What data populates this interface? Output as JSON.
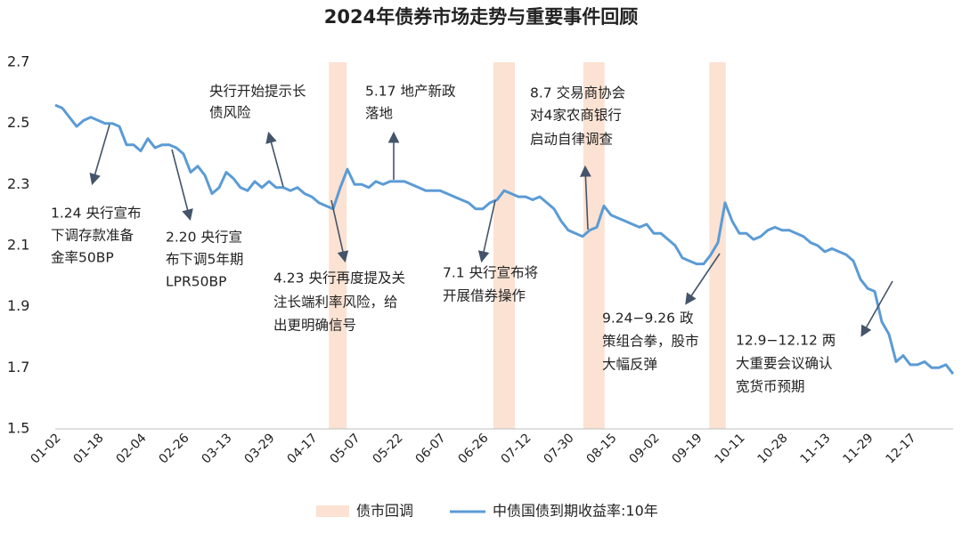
{
  "chart_data": {
    "type": "line",
    "title": "2024年债券市场走势与重要事件回顾",
    "categories": [
      "01-02",
      null,
      null,
      null,
      null,
      null,
      "01-18",
      null,
      null,
      null,
      null,
      null,
      "02-04",
      null,
      null,
      null,
      null,
      null,
      "02-26",
      null,
      null,
      null,
      null,
      null,
      "03-13",
      null,
      null,
      null,
      null,
      null,
      "03-29",
      null,
      null,
      null,
      null,
      null,
      "04-17",
      null,
      null,
      null,
      null,
      null,
      "05-07",
      null,
      null,
      null,
      null,
      null,
      "05-22",
      null,
      null,
      null,
      null,
      null,
      "06-07",
      null,
      null,
      null,
      null,
      null,
      "06-26",
      null,
      null,
      null,
      null,
      null,
      "07-12",
      null,
      null,
      null,
      null,
      null,
      "07-30",
      null,
      null,
      null,
      null,
      null,
      "08-15",
      null,
      null,
      null,
      null,
      null,
      "09-02",
      null,
      null,
      null,
      null,
      null,
      "09-19",
      null,
      null,
      null,
      null,
      null,
      "10-11",
      null,
      null,
      null,
      null,
      null,
      "10-28",
      null,
      null,
      null,
      null,
      null,
      "11-13",
      null,
      null,
      null,
      null,
      null,
      "11-29",
      null,
      null,
      null,
      null,
      null,
      "12-17",
      null,
      null,
      null,
      null,
      null,
      null
    ],
    "series": [
      {
        "name": "中债国债到期收益率:10年",
        "color": "#5b9bd5",
        "values": [
          2.56,
          2.55,
          2.52,
          2.49,
          2.51,
          2.52,
          2.51,
          2.5,
          2.5,
          2.49,
          2.43,
          2.43,
          2.41,
          2.45,
          2.42,
          2.43,
          2.43,
          2.42,
          2.4,
          2.34,
          2.36,
          2.33,
          2.27,
          2.29,
          2.34,
          2.32,
          2.29,
          2.28,
          2.31,
          2.29,
          2.31,
          2.29,
          2.29,
          2.28,
          2.29,
          2.27,
          2.26,
          2.24,
          2.23,
          2.22,
          2.29,
          2.35,
          2.3,
          2.3,
          2.29,
          2.31,
          2.3,
          2.31,
          2.31,
          2.31,
          2.3,
          2.29,
          2.28,
          2.28,
          2.28,
          2.27,
          2.26,
          2.25,
          2.24,
          2.22,
          2.22,
          2.24,
          2.25,
          2.28,
          2.27,
          2.26,
          2.26,
          2.25,
          2.26,
          2.24,
          2.22,
          2.18,
          2.15,
          2.14,
          2.13,
          2.15,
          2.16,
          2.23,
          2.2,
          2.19,
          2.18,
          2.17,
          2.16,
          2.17,
          2.14,
          2.14,
          2.12,
          2.1,
          2.06,
          2.05,
          2.04,
          2.04,
          2.07,
          2.11,
          2.24,
          2.18,
          2.14,
          2.14,
          2.12,
          2.13,
          2.15,
          2.16,
          2.15,
          2.15,
          2.14,
          2.13,
          2.11,
          2.1,
          2.08,
          2.09,
          2.08,
          2.07,
          2.05,
          1.99,
          1.96,
          1.95,
          1.85,
          1.81,
          1.72,
          1.74,
          1.71,
          1.71,
          1.72,
          1.7,
          1.7,
          1.71,
          1.68
        ]
      }
    ],
    "bands": {
      "name": "债市回调",
      "color": "#fbe2d3",
      "ranges": [
        [
          38.4,
          40.9
        ],
        [
          61.5,
          64.5
        ],
        [
          74.1,
          77.1
        ],
        [
          91.8,
          94.1
        ]
      ]
    },
    "ylim": [
      1.5,
      2.7
    ],
    "yticks": [
      1.5,
      1.7,
      1.9,
      2.1,
      2.3,
      2.5,
      2.7
    ],
    "annotations": [
      {
        "lines": [
          "1.24 央行宣布",
          "下调存款准备",
          "金率50BP"
        ]
      },
      {
        "lines": [
          "2.20 央行宣",
          "布下调5年期",
          "LPR50BP"
        ]
      },
      {
        "lines": [
          "央行开始提示长",
          "债风险"
        ]
      },
      {
        "lines": [
          "4.23 央行再度提及关",
          "注长端利率风险，给",
          "出更明确信号"
        ]
      },
      {
        "lines": [
          "5.17 地产新政",
          "落地"
        ]
      },
      {
        "lines": [
          "7.1 央行宣布将",
          "开展借券操作"
        ]
      },
      {
        "lines": [
          "8.7 交易商协会",
          "对4家农商银行",
          "启动自律调查"
        ]
      },
      {
        "lines": [
          "9.24−9.26 政",
          "策组合拳，股市",
          "大幅反弹"
        ]
      },
      {
        "lines": [
          "12.9−12.12 两",
          "大重要会议确认",
          "宽货币预期"
        ]
      }
    ]
  }
}
